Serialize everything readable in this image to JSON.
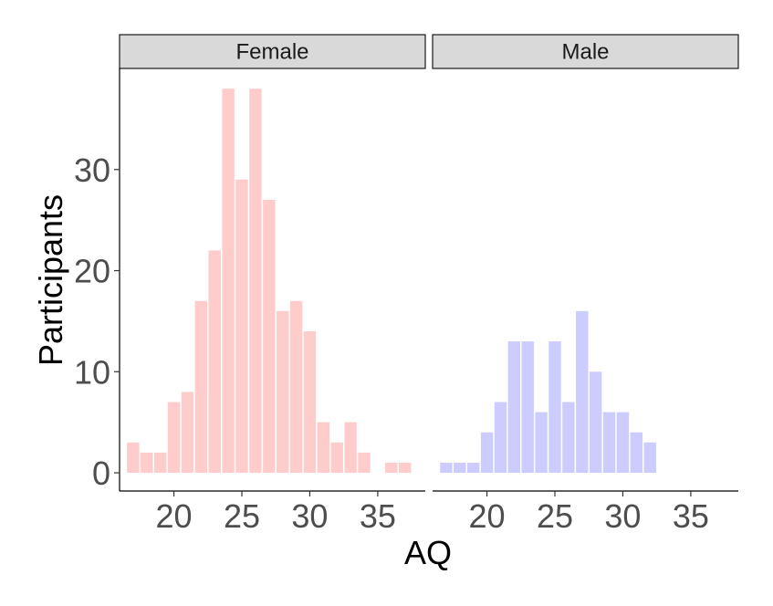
{
  "chart_data": {
    "type": "bar",
    "xlabel": "AQ",
    "ylabel": "Participants",
    "xlim": [
      16,
      38.5
    ],
    "ylim": [
      -1.8,
      40
    ],
    "x_ticks": [
      20,
      25,
      30,
      35
    ],
    "y_ticks": [
      0,
      10,
      20,
      30
    ],
    "grid": false,
    "legend": "none",
    "panels": [
      {
        "name": "Female",
        "color": "#ffcccc",
        "x": [
          17,
          18,
          19,
          20,
          21,
          22,
          23,
          24,
          25,
          26,
          27,
          28,
          29,
          30,
          31,
          32,
          33,
          34,
          36,
          37
        ],
        "values": [
          3,
          2,
          2,
          7,
          8,
          17,
          22,
          38,
          29,
          38,
          27,
          16,
          17,
          14,
          5,
          3,
          5,
          2,
          1,
          1
        ]
      },
      {
        "name": "Male",
        "color": "#ccccff",
        "x": [
          17,
          18,
          19,
          20,
          21,
          22,
          23,
          24,
          25,
          26,
          27,
          28,
          29,
          30,
          31,
          32
        ],
        "values": [
          1,
          1,
          1,
          4,
          7,
          13,
          13,
          6,
          13,
          7,
          16,
          10,
          6,
          6,
          4,
          3
        ]
      }
    ]
  }
}
